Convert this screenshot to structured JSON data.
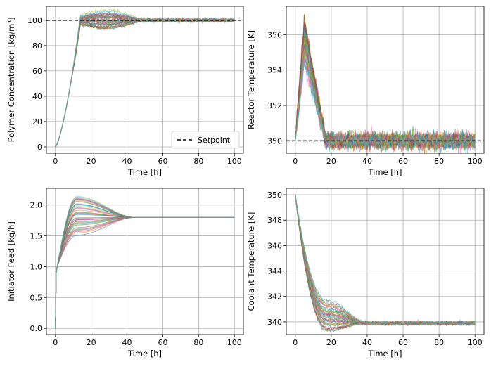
{
  "colors": {
    "series": [
      "#1f77b4",
      "#ff7f0e",
      "#2ca02c",
      "#d62728",
      "#9467bd",
      "#8c564b",
      "#e377c2",
      "#7f7f7f",
      "#bcbd22",
      "#17becf"
    ],
    "setpoint": "#000000",
    "grid": "#b0b0b0"
  },
  "chart_data": [
    {
      "id": "polymer",
      "type": "line",
      "title": "",
      "xlabel": "Time [h]",
      "ylabel": "Polymer Concentration [kg/m³]",
      "xlim": [
        -5,
        105
      ],
      "ylim": [
        -5,
        111
      ],
      "xticks": [
        0,
        20,
        40,
        60,
        80,
        100
      ],
      "yticks": [
        0,
        20,
        40,
        60,
        80,
        100
      ],
      "grid": true,
      "legend": {
        "location": "lower right",
        "entries": [
          {
            "label": "Setpoint",
            "style": "dashed",
            "color": "#000000"
          }
        ]
      },
      "setpoint": 100,
      "n_trajectories": 40,
      "trajectory_summary": {
        "start": 0,
        "rise_end_time": 14,
        "peak_range": [
          95,
          106
        ],
        "peak_time": 25,
        "final": 100,
        "settle_time": 45,
        "noise_amplitude": 0.6
      }
    },
    {
      "id": "reactor",
      "type": "line",
      "title": "",
      "xlabel": "Time [h]",
      "ylabel": "Reactor Temperature [K]",
      "xlim": [
        -5,
        105
      ],
      "ylim": [
        349.3,
        357.6
      ],
      "xticks": [
        0,
        20,
        40,
        60,
        80,
        100
      ],
      "yticks": [
        350,
        352,
        354,
        356
      ],
      "grid": true,
      "setpoint": 350,
      "n_trajectories": 40,
      "trajectory_summary": {
        "start": 350,
        "peak_range": [
          354.4,
          357.1
        ],
        "peak_time": 5,
        "return_time": 17,
        "final": 350,
        "noise_amplitude": 0.55
      }
    },
    {
      "id": "initiator",
      "type": "line",
      "title": "",
      "xlabel": "Time [h]",
      "ylabel": "Initiator Feed [kg/h]",
      "xlim": [
        -5,
        105
      ],
      "ylim": [
        -0.1,
        2.27
      ],
      "xticks": [
        0,
        20,
        40,
        60,
        80,
        100
      ],
      "yticks": [
        0.0,
        0.5,
        1.0,
        1.5,
        2.0
      ],
      "ytick_labels": [
        "0.0",
        "0.5",
        "1.0",
        "1.5",
        "2.0"
      ],
      "grid": true,
      "n_trajectories": 40,
      "trajectory_summary": {
        "start": 0,
        "jump_value": 1.0,
        "peak_range": [
          1.55,
          2.15
        ],
        "peak_time": 12,
        "final": 1.8,
        "settle_time": 45
      }
    },
    {
      "id": "coolant",
      "type": "line",
      "title": "",
      "xlabel": "Time [h]",
      "ylabel": "Coolant Temperature [K]",
      "xlim": [
        -5,
        105
      ],
      "ylim": [
        339.0,
        350.5
      ],
      "xticks": [
        0,
        20,
        40,
        60,
        80,
        100
      ],
      "yticks": [
        340,
        342,
        344,
        346,
        348,
        350
      ],
      "grid": true,
      "n_trajectories": 40,
      "trajectory_summary": {
        "start": 350,
        "trough_range": [
          339.3,
          341.8
        ],
        "trough_time": 18,
        "final": 339.9,
        "settle_time": 40,
        "noise_amplitude": 0.1
      }
    }
  ]
}
